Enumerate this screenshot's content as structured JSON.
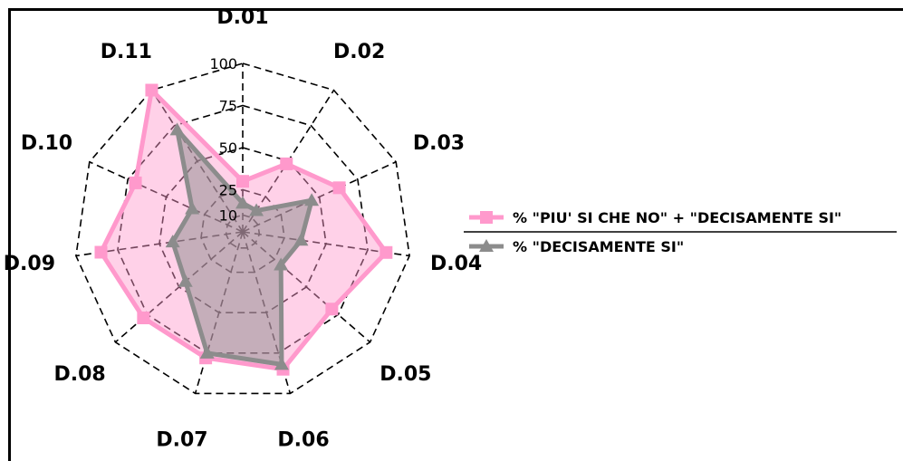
{
  "chart_data": {
    "type": "radar",
    "categories": [
      "D.01",
      "D.02",
      "D.03",
      "D.04",
      "D.05",
      "D.06",
      "D.07",
      "D.08",
      "D.09",
      "D.10",
      "D.11"
    ],
    "series": [
      {
        "name": "% \"PIU' SI CHE NO\" + \"DECISAMENTE SI\"",
        "values": [
          30,
          48,
          63,
          86,
          70,
          85,
          78,
          78,
          85,
          70,
          100
        ],
        "color": "#ff99cc",
        "fill": "#ff99cc",
        "marker": "square"
      },
      {
        "name": "% \"DECISAMENTE SI\"",
        "values": [
          17,
          15,
          45,
          35,
          30,
          82,
          75,
          45,
          42,
          33,
          72
        ],
        "color": "#8c8c8c",
        "fill": "#8c8c8c",
        "marker": "triangle"
      }
    ],
    "radial_ticks": [
      10,
      25,
      50,
      75,
      100
    ],
    "rlim": [
      0,
      100
    ],
    "grid": "dashed",
    "legend_position": "right"
  }
}
